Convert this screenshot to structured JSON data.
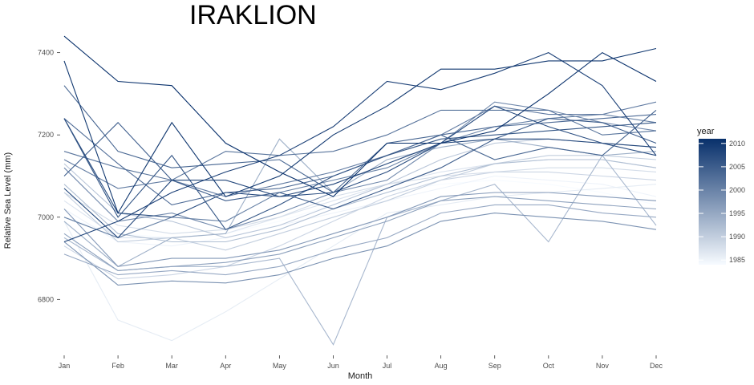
{
  "chart_data": {
    "type": "line",
    "title": "IRAKLION",
    "xlabel": "Month",
    "ylabel": "Relative Sea Level (mm)",
    "categories": [
      "Jan",
      "Feb",
      "Mar",
      "Apr",
      "May",
      "Jun",
      "Jul",
      "Aug",
      "Sep",
      "Oct",
      "Nov",
      "Dec"
    ],
    "yticks": [
      6800,
      7000,
      7200,
      7400
    ],
    "ylim": [
      6670,
      7450
    ],
    "grid": false,
    "legend": {
      "title": "year",
      "position": "right",
      "ticks": [
        1985,
        1990,
        1995,
        2000,
        2005,
        2010
      ],
      "range": [
        1984,
        2011
      ],
      "color_low": "#f7fbff",
      "color_high": "#08306b"
    },
    "series": [
      {
        "year": 1984,
        "values": [
          7000,
          6960,
          6950,
          6960,
          6990,
          7030,
          7060,
          7080,
          7090,
          7080,
          7060,
          7030
        ]
      },
      {
        "year": 1985,
        "values": [
          7020,
          6940,
          6930,
          6950,
          6980,
          7010,
          7040,
          7070,
          7100,
          7090,
          7080,
          7050
        ]
      },
      {
        "year": 1986,
        "values": [
          6990,
          6750,
          6700,
          6770,
          6850,
          6930,
          7010,
          7030,
          7050,
          7060,
          7070,
          7080
        ]
      },
      {
        "year": 1987,
        "values": [
          7040,
          6950,
          6950,
          6960,
          7000,
          7040,
          7080,
          7110,
          7130,
          7140,
          7140,
          7120
        ]
      },
      {
        "year": 1988,
        "values": [
          7060,
          6980,
          6960,
          6970,
          7000,
          7050,
          7080,
          7100,
          7110,
          7120,
          7120,
          7110
        ]
      },
      {
        "year": 1989,
        "values": [
          6930,
          6850,
          6860,
          6880,
          6930,
          6990,
          7050,
          7090,
          7110,
          7110,
          7100,
          7090
        ]
      },
      {
        "year": 1990,
        "values": [
          7060,
          6940,
          6950,
          6920,
          6960,
          7000,
          7040,
          7090,
          7130,
          7150,
          7150,
          7140
        ]
      },
      {
        "year": 1991,
        "values": [
          7130,
          7010,
          6990,
          6950,
          6980,
          7030,
          7080,
          7140,
          7180,
          7190,
          7180,
          7170
        ]
      },
      {
        "year": 1992,
        "values": [
          7080,
          6960,
          6940,
          6940,
          6970,
          7020,
          7060,
          7100,
          7130,
          7140,
          7140,
          7120
        ]
      },
      {
        "year": 1993,
        "values": [
          6950,
          6870,
          6880,
          6880,
          6900,
          6690,
          7000,
          7040,
          7080,
          6940,
          7150,
          6980
        ]
      },
      {
        "year": 1994,
        "values": [
          6990,
          6880,
          6950,
          6960,
          7190,
          7060,
          7140,
          7170,
          7190,
          7170,
          7150,
          7160
        ]
      },
      {
        "year": 1995,
        "values": [
          6910,
          6860,
          6870,
          6860,
          6880,
          6920,
          6950,
          7010,
          7030,
          7030,
          7010,
          7000
        ]
      },
      {
        "year": 1996,
        "values": [
          6960,
          6870,
          6880,
          6890,
          6910,
          6950,
          6990,
          7040,
          7050,
          7040,
          7030,
          7020
        ]
      },
      {
        "year": 1997,
        "values": [
          7020,
          6880,
          6900,
          6900,
          6920,
          6960,
          7000,
          7050,
          7060,
          7060,
          7050,
          7040
        ]
      },
      {
        "year": 1998,
        "values": [
          6940,
          6835,
          6845,
          6840,
          6860,
          6900,
          6930,
          6990,
          7010,
          7000,
          6990,
          6970
        ]
      },
      {
        "year": 1999,
        "values": [
          7120,
          6990,
          7010,
          6970,
          7010,
          7060,
          7090,
          7180,
          7280,
          7260,
          7230,
          7210
        ]
      },
      {
        "year": 2000,
        "values": [
          7000,
          6950,
          7000,
          6990,
          7060,
          7090,
          7120,
          7180,
          7220,
          7240,
          7250,
          7230
        ]
      },
      {
        "year": 2001,
        "values": [
          7140,
          7070,
          7090,
          7050,
          7080,
          7110,
          7150,
          7200,
          7270,
          7250,
          7250,
          7280
        ]
      },
      {
        "year": 2002,
        "values": [
          7160,
          7120,
          7090,
          7160,
          7150,
          7160,
          7200,
          7260,
          7260,
          7260,
          7200,
          7210
        ]
      },
      {
        "year": 2003,
        "values": [
          7240,
          7130,
          7030,
          7060,
          7070,
          7100,
          7150,
          7200,
          7220,
          7230,
          7240,
          7250
        ]
      },
      {
        "year": 2004,
        "values": [
          7320,
          7160,
          7120,
          7130,
          7140,
          7060,
          7180,
          7200,
          7140,
          7170,
          7150,
          7260
        ]
      },
      {
        "year": 2005,
        "values": [
          7100,
          7230,
          7090,
          7040,
          7060,
          7020,
          7070,
          7120,
          7190,
          7240,
          7230,
          7180
        ]
      },
      {
        "year": 2006,
        "values": [
          7240,
          7000,
          7150,
          6970,
          7030,
          7100,
          7150,
          7190,
          7200,
          7210,
          7220,
          7230
        ]
      },
      {
        "year": 2007,
        "values": [
          7240,
          7010,
          7000,
          7060,
          7050,
          7060,
          7110,
          7180,
          7270,
          7220,
          7180,
          7150
        ]
      },
      {
        "year": 2008,
        "values": [
          7070,
          6950,
          7090,
          7090,
          7050,
          7080,
          7130,
          7180,
          7190,
          7190,
          7180,
          7170
        ]
      },
      {
        "year": 2009,
        "values": [
          6940,
          6990,
          7060,
          7110,
          7150,
          7220,
          7330,
          7310,
          7350,
          7400,
          7320,
          7150
        ]
      },
      {
        "year": 2010,
        "values": [
          7380,
          7010,
          7230,
          7050,
          7100,
          7200,
          7270,
          7360,
          7360,
          7380,
          7380,
          7410
        ]
      },
      {
        "year": 2011,
        "values": [
          7440,
          7330,
          7320,
          7180,
          7110,
          7050,
          7180,
          7180,
          7210,
          7300,
          7400,
          7330
        ]
      }
    ]
  }
}
